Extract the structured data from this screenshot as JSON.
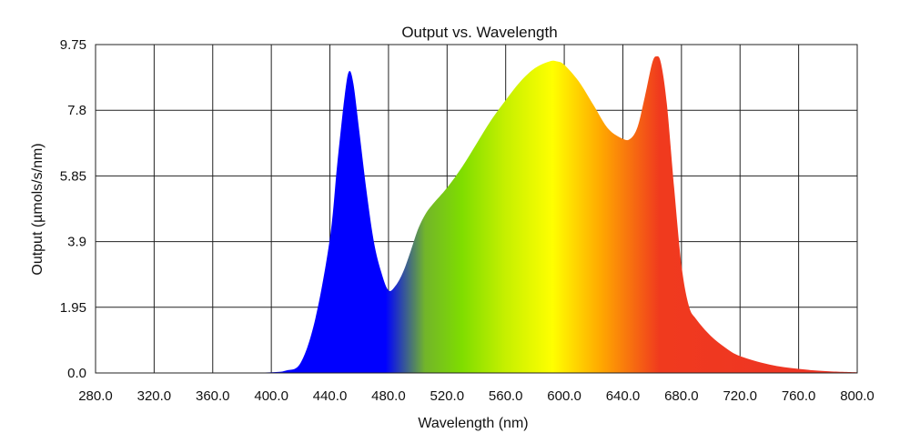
{
  "chart_data": {
    "type": "area",
    "title": "Output vs. Wavelength",
    "xlabel": "Wavelength (nm)",
    "ylabel": "Output (µmols/s/nm)",
    "xlim": [
      280,
      800
    ],
    "ylim": [
      0,
      9.75
    ],
    "x_ticks": [
      "280.0",
      "320.0",
      "360.0",
      "400.0",
      "440.0",
      "480.0",
      "520.0",
      "560.0",
      "600.0",
      "640.0",
      "680.0",
      "720.0",
      "760.0",
      "800.0"
    ],
    "y_ticks": [
      "0.0",
      "1.95",
      "3.9",
      "5.85",
      "7.8",
      "9.75"
    ],
    "grid": true,
    "legend": "none",
    "fill": "spectral-gradient",
    "x": [
      280,
      300,
      320,
      340,
      360,
      380,
      400,
      410,
      420,
      430,
      440,
      445,
      450,
      453,
      456,
      460,
      465,
      470,
      475,
      480,
      485,
      490,
      495,
      500,
      505,
      510,
      520,
      530,
      540,
      550,
      560,
      570,
      580,
      590,
      595,
      600,
      610,
      620,
      630,
      640,
      645,
      650,
      655,
      660,
      663,
      666,
      670,
      675,
      680,
      685,
      690,
      700,
      710,
      720,
      740,
      760,
      780,
      800
    ],
    "y": [
      0.0,
      0.0,
      0.0,
      0.0,
      0.0,
      0.0,
      0.02,
      0.07,
      0.3,
      1.6,
      4.0,
      6.2,
      8.2,
      8.95,
      8.6,
      7.2,
      5.4,
      3.9,
      3.0,
      2.45,
      2.6,
      3.0,
      3.6,
      4.25,
      4.7,
      5.0,
      5.5,
      6.1,
      6.8,
      7.5,
      8.1,
      8.65,
      9.05,
      9.25,
      9.25,
      9.15,
      8.65,
      7.95,
      7.25,
      6.95,
      6.95,
      7.3,
      8.2,
      9.2,
      9.4,
      9.2,
      8.0,
      5.5,
      3.2,
      2.0,
      1.6,
      1.1,
      0.75,
      0.5,
      0.25,
      0.12,
      0.05,
      0.02
    ],
    "gradient_stops": [
      {
        "nm": 280,
        "color": "#0000ff"
      },
      {
        "nm": 478,
        "color": "#0000ff"
      },
      {
        "nm": 505,
        "color": "#72b52a"
      },
      {
        "nm": 530,
        "color": "#7fdd00"
      },
      {
        "nm": 560,
        "color": "#c6f000"
      },
      {
        "nm": 592,
        "color": "#ffff00"
      },
      {
        "nm": 625,
        "color": "#ffa800"
      },
      {
        "nm": 665,
        "color": "#f03a1e"
      },
      {
        "nm": 800,
        "color": "#ed3326"
      }
    ]
  }
}
